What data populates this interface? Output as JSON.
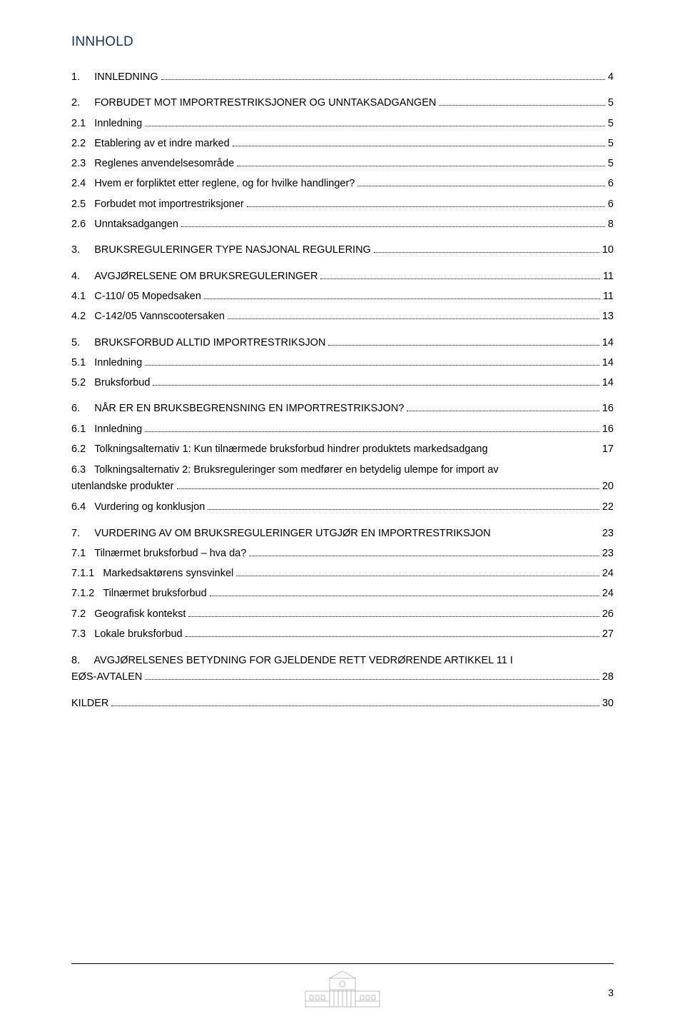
{
  "title": "INNHOLD",
  "entries": [
    {
      "num": "1.",
      "label": "INNLEDNING",
      "page": "4",
      "level": 1
    },
    {
      "num": "2.",
      "label": "FORBUDET MOT IMPORTRESTRIKSJONER OG UNNTAKSADGANGEN",
      "page": "5",
      "level": 1
    },
    {
      "num": "2.1",
      "label": "Innledning",
      "page": "5",
      "level": 2
    },
    {
      "num": "2.2",
      "label": "Etablering av et indre marked",
      "page": "5",
      "level": 2
    },
    {
      "num": "2.3",
      "label": "Reglenes anvendelsesområde",
      "page": "5",
      "level": 2
    },
    {
      "num": "2.4",
      "label": "Hvem er forpliktet etter reglene, og for hvilke handlinger?",
      "page": "6",
      "level": 2
    },
    {
      "num": "2.5",
      "label": "Forbudet mot importrestriksjoner",
      "page": "6",
      "level": 2
    },
    {
      "num": "2.6",
      "label": "Unntaksadgangen",
      "page": "8",
      "level": 2
    },
    {
      "num": "3.",
      "label": "BRUKSREGULERINGER TYPE NASJONAL REGULERING",
      "page": "10",
      "level": 1
    },
    {
      "num": "4.",
      "label": "AVGJØRELSENE OM BRUKSREGULERINGER",
      "page": "11",
      "level": 1
    },
    {
      "num": "4.1",
      "label": "C-110/ 05 Mopedsaken",
      "page": "11",
      "level": 2
    },
    {
      "num": "4.2",
      "label": "C-142/05 Vannscootersaken",
      "page": "13",
      "level": 2
    },
    {
      "num": "5.",
      "label": "BRUKSFORBUD ALLTID IMPORTRESTRIKSJON",
      "page": "14",
      "level": 1
    },
    {
      "num": "5.1",
      "label": "Innledning",
      "page": "14",
      "level": 2
    },
    {
      "num": "5.2",
      "label": "Bruksforbud",
      "page": "14",
      "level": 2
    },
    {
      "num": "6.",
      "label": "NÅR ER EN BRUKSBEGRENSNING EN IMPORTRESTRIKSJON?",
      "page": "16",
      "level": 1
    },
    {
      "num": "6.1",
      "label": "Innledning",
      "page": "16",
      "level": 2
    },
    {
      "num": "6.2",
      "label": "Tolkningsalternativ 1: Kun tilnærmede bruksforbud hindrer produktets markedsadgang",
      "page": "17",
      "level": 2,
      "nowrap": true
    },
    {
      "num": "6.3",
      "label_line1": "Tolkningsalternativ 2: Bruksreguleringer som medfører en betydelig ulempe for import av",
      "label_line2": "utenlandske produkter",
      "page": "20",
      "level": 2,
      "multi": true
    },
    {
      "num": "6.4",
      "label": "Vurdering og konklusjon",
      "page": "22",
      "level": 2
    },
    {
      "num": "7.",
      "label": "VURDERING AV OM BRUKSREGULERINGER UTGJØR EN IMPORTRESTRIKSJON",
      "page": "23",
      "level": 1,
      "nowrap": true
    },
    {
      "num": "7.1",
      "label": "Tilnærmet bruksforbud – hva da?",
      "page": "23",
      "level": 2
    },
    {
      "num": "7.1.1",
      "label": "Markedsaktørens synsvinkel",
      "page": "24",
      "level": 2
    },
    {
      "num": "7.1.2",
      "label": "Tilnærmet bruksforbud",
      "page": "24",
      "level": 2
    },
    {
      "num": "7.2",
      "label": "Geografisk kontekst",
      "page": "26",
      "level": 2
    },
    {
      "num": "7.3",
      "label": "Lokale bruksforbud",
      "page": "27",
      "level": 2
    },
    {
      "num": "8.",
      "label_line1": "AVGJØRELSENES BETYDNING FOR GJELDENDE RETT VEDRØRENDE ARTIKKEL 11 I",
      "label_line2": "EØS-AVTALEN",
      "page": "28",
      "level": 1,
      "multi": true
    },
    {
      "num": "",
      "label": "KILDER",
      "page": "30",
      "level": 1
    }
  ],
  "pageNumber": "3",
  "colors": {
    "title": "#17365d",
    "text": "#000000",
    "background": "#ffffff",
    "logo": "#8a8a8a"
  }
}
